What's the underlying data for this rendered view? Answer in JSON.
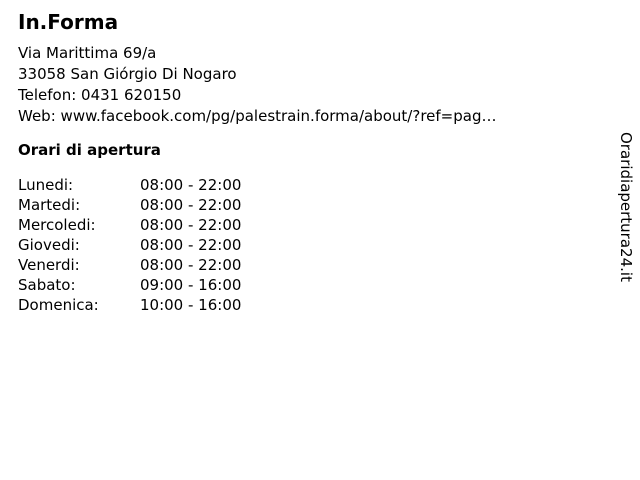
{
  "business": {
    "name": "In.Forma",
    "address_line1": "Via Marittima 69/a",
    "address_line2": "33058 San Giórgio Di Nogaro",
    "phone_label": "Telefon:",
    "phone": "0431 620150",
    "web_label": "Web:",
    "web_url": "www.facebook.com/pg/palestrain.forma/about/?ref=pag…"
  },
  "hours": {
    "heading": "Orari di apertura",
    "rows": [
      {
        "day": "Lunedi:",
        "time": "08:00 - 22:00"
      },
      {
        "day": "Martedi:",
        "time": "08:00 - 22:00"
      },
      {
        "day": "Mercoledi:",
        "time": "08:00 - 22:00"
      },
      {
        "day": "Giovedi:",
        "time": "08:00 - 22:00"
      },
      {
        "day": "Venerdi:",
        "time": "08:00 - 22:00"
      },
      {
        "day": "Sabato:",
        "time": "09:00 - 16:00"
      },
      {
        "day": "Domenica:",
        "time": "10:00 - 16:00"
      }
    ]
  },
  "watermark": "Oraridiapertura24.it",
  "colors": {
    "text": "#000000",
    "background": "#ffffff"
  }
}
